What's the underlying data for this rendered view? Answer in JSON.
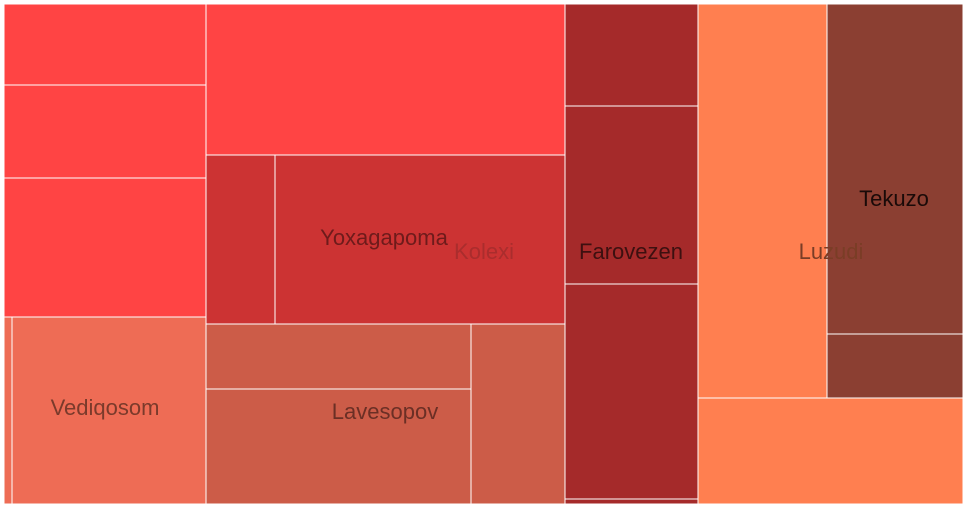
{
  "chart_data": {
    "type": "treemap",
    "title": "",
    "groups": [
      {
        "name": "Kolexi",
        "color": "#ff4444",
        "label_color": "#aa2d2d",
        "children": [
          {
            "name": "",
            "value": 16.3,
            "color": "#ff4444"
          },
          {
            "name": "",
            "value": 18.6,
            "color": "#ff4444"
          },
          {
            "name": "",
            "value": 27.7,
            "color": "#ff4444"
          },
          {
            "name": "",
            "value": 53.6,
            "color": "#ff4444"
          },
          {
            "name": "",
            "value": 11.7,
            "color": "#cc3333"
          },
          {
            "name": "Yoxagapoma",
            "value": 49.0,
            "color": "#cc3333",
            "label_color": "#6e1b1b"
          },
          {
            "name": "",
            "value": 1.2,
            "color": "#ee6c55"
          },
          {
            "name": "Vediqosom",
            "value": 38.0,
            "color": "#ee6c55",
            "label_color": "#7a3a2b"
          },
          {
            "name": "",
            "value": 17.2,
            "color": "#cc5c48"
          },
          {
            "name": "",
            "value": 30.1,
            "color": "#cc5c48"
          },
          {
            "name": "Lavesopov",
            "value": 18.4,
            "color": "#cc5c48",
            "label_color": "#6b2f25"
          }
        ]
      },
      {
        "name": "Farovezen",
        "color": "#a52a2a",
        "label_color": "#3d1010",
        "children": [
          {
            "name": "",
            "value": 13.3,
            "color": "#a52a2a"
          },
          {
            "name": "",
            "value": 23.4,
            "color": "#a52a2a"
          },
          {
            "name": "",
            "value": 28.6,
            "color": "#a52a2a"
          },
          {
            "name": "",
            "value": 0.5,
            "color": "#a52a2a"
          }
        ]
      },
      {
        "name": "Luzudi",
        "color": "#ff7f50",
        "label_color": "#7a3d26",
        "children": [
          {
            "name": "",
            "value": 50.8,
            "color": "#ff7f50"
          },
          {
            "name": "",
            "value": 41.8,
            "color": "#8b3f32"
          },
          {
            "name": "Tekuzo",
            "value": 8.3,
            "color": "#8b3f32",
            "label_color": "#1a0a08"
          },
          {
            "name": "",
            "value": 26.5,
            "color": "#ff7f50"
          }
        ]
      }
    ]
  }
}
